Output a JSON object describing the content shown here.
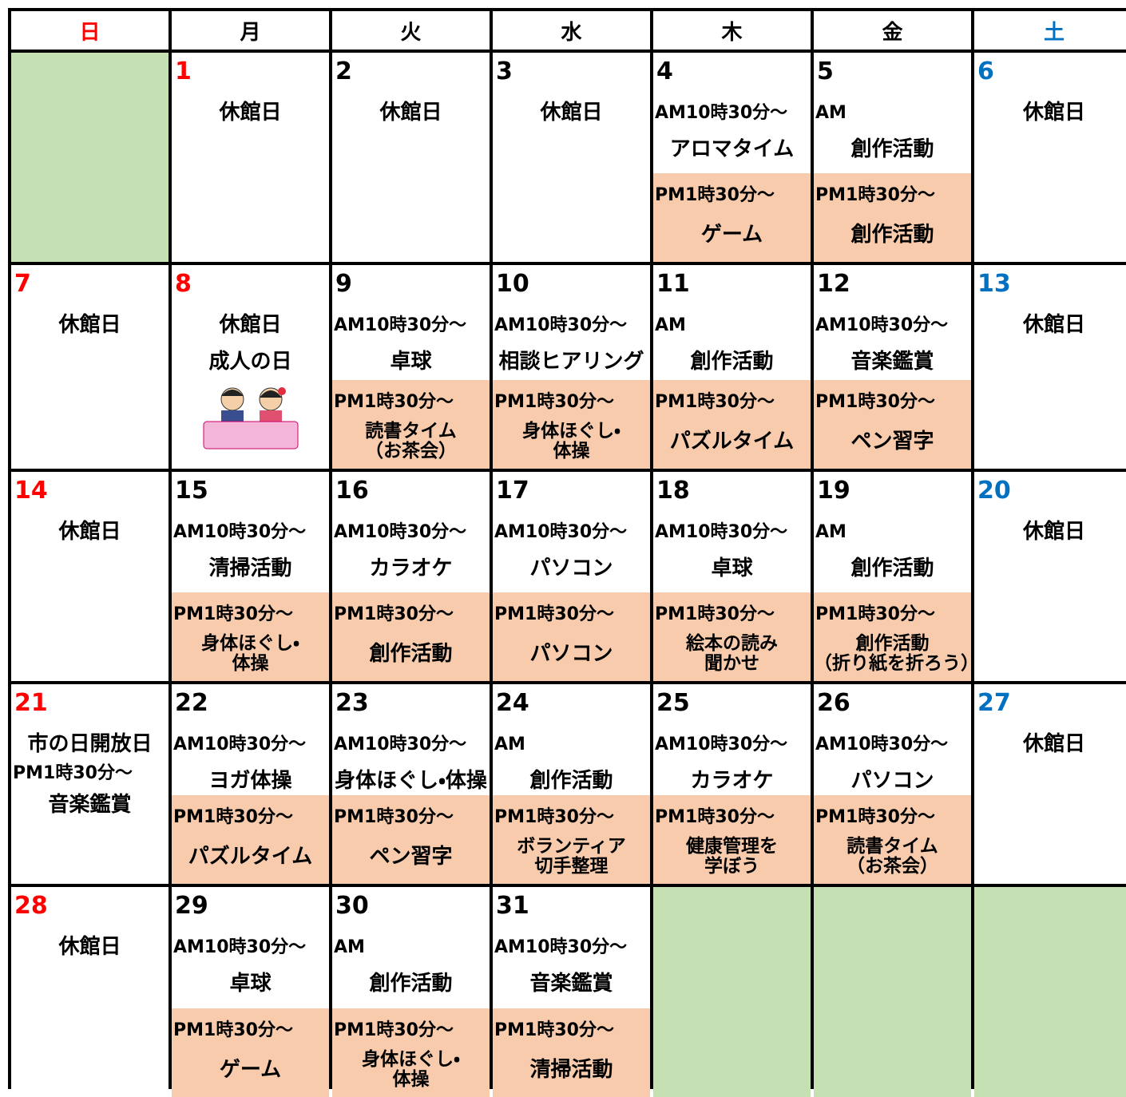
{
  "headers": [
    "日",
    "月",
    "火",
    "水",
    "木",
    "金",
    "土"
  ],
  "weeks": [
    [
      null,
      {
        "day": "1",
        "holiday": true,
        "notes": [
          "休館日"
        ]
      },
      {
        "day": "2",
        "notes": [
          "休館日"
        ]
      },
      {
        "day": "3",
        "notes": [
          "休館日"
        ]
      },
      {
        "day": "4",
        "am": {
          "time": "AM10時30分～",
          "activity": [
            "アロマタイム"
          ]
        },
        "pm": {
          "time": "PM1時30分～",
          "activity": [
            "ゲーム"
          ]
        }
      },
      {
        "day": "5",
        "am": {
          "time": "AM",
          "activity": [
            "創作活動"
          ]
        },
        "pm": {
          "time": "PM1時30分～",
          "activity": [
            "創作活動"
          ]
        }
      },
      {
        "day": "6",
        "notes": [
          "休館日"
        ]
      }
    ],
    [
      {
        "day": "7",
        "notes": [
          "休館日"
        ]
      },
      {
        "day": "8",
        "holiday": true,
        "notes": [
          "休館日",
          "成人の日"
        ],
        "illustration": true
      },
      {
        "day": "9",
        "am": {
          "time": "AM10時30分～",
          "activity": [
            "卓球"
          ]
        },
        "pm": {
          "time": "PM1時30分～",
          "activity": [
            "読書タイム",
            "（お茶会）"
          ]
        }
      },
      {
        "day": "10",
        "am": {
          "time": "AM10時30分～",
          "activity": [
            "相談ヒアリング"
          ]
        },
        "pm": {
          "time": "PM1時30分～",
          "activity": [
            "身体ほぐし・",
            "体操"
          ]
        }
      },
      {
        "day": "11",
        "am": {
          "time": "AM",
          "activity": [
            "創作活動"
          ]
        },
        "pm": {
          "time": "PM1時30分～",
          "activity": [
            "パズルタイム"
          ]
        }
      },
      {
        "day": "12",
        "am": {
          "time": "AM10時30分～",
          "activity": [
            "音楽鑑賞"
          ]
        },
        "pm": {
          "time": "PM1時30分～",
          "activity": [
            "ペン習字"
          ]
        }
      },
      {
        "day": "13",
        "notes": [
          "休館日"
        ]
      }
    ],
    [
      {
        "day": "14",
        "notes": [
          "休館日"
        ]
      },
      {
        "day": "15",
        "am": {
          "time": "AM10時30分～",
          "activity": [
            "清掃活動"
          ]
        },
        "pm": {
          "time": "PM1時30分～",
          "activity": [
            "身体ほぐし・",
            "体操"
          ]
        }
      },
      {
        "day": "16",
        "am": {
          "time": "AM10時30分～",
          "activity": [
            "カラオケ"
          ]
        },
        "pm": {
          "time": "PM1時30分～",
          "activity": [
            "創作活動"
          ]
        }
      },
      {
        "day": "17",
        "am": {
          "time": "AM10時30分～",
          "activity": [
            "パソコン"
          ]
        },
        "pm": {
          "time": "PM1時30分～",
          "activity": [
            "パソコン"
          ]
        }
      },
      {
        "day": "18",
        "am": {
          "time": "AM10時30分～",
          "activity": [
            "卓球"
          ]
        },
        "pm": {
          "time": "PM1時30分～",
          "activity": [
            "絵本の読み",
            "聞かせ"
          ]
        }
      },
      {
        "day": "19",
        "am": {
          "time": "AM",
          "activity": [
            "創作活動"
          ]
        },
        "pm": {
          "time": "PM1時30分～",
          "activity": [
            "創作活動",
            "（折り紙を折ろう）"
          ]
        }
      },
      {
        "day": "20",
        "notes": [
          "休館日"
        ]
      }
    ],
    [
      {
        "day": "21",
        "special": {
          "title": "市の日開放日",
          "time": "PM1時30分～",
          "activity": "音楽鑑賞"
        }
      },
      {
        "day": "22",
        "am": {
          "time": "AM10時30分～",
          "activity": [
            "ヨガ体操"
          ]
        },
        "pm": {
          "time": "PM1時30分～",
          "activity": [
            "パズルタイム"
          ]
        }
      },
      {
        "day": "23",
        "am": {
          "time": "AM10時30分～",
          "activity": [
            "身体ほぐし・体操"
          ]
        },
        "pm": {
          "time": "PM1時30分～",
          "activity": [
            "ペン習字"
          ]
        }
      },
      {
        "day": "24",
        "am": {
          "time": "AM",
          "activity": [
            "創作活動"
          ]
        },
        "pm": {
          "time": "PM1時30分～",
          "activity": [
            "ボランティア",
            "切手整理"
          ]
        }
      },
      {
        "day": "25",
        "am": {
          "time": "AM10時30分～",
          "activity": [
            "カラオケ"
          ]
        },
        "pm": {
          "time": "PM1時30分～",
          "activity": [
            "健康管理を",
            "学ぼう"
          ]
        }
      },
      {
        "day": "26",
        "am": {
          "time": "AM10時30分～",
          "activity": [
            "パソコン"
          ]
        },
        "pm": {
          "time": "PM1時30分～",
          "activity": [
            "読書タイム",
            "（お茶会）"
          ]
        }
      },
      {
        "day": "27",
        "notes": [
          "休館日"
        ]
      }
    ],
    [
      {
        "day": "28",
        "notes": [
          "休館日"
        ]
      },
      {
        "day": "29",
        "am": {
          "time": "AM10時30分～",
          "activity": [
            "卓球"
          ]
        },
        "pm": {
          "time": "PM1時30分～",
          "activity": [
            "ゲーム"
          ]
        }
      },
      {
        "day": "30",
        "am": {
          "time": "AM",
          "activity": [
            "創作活動"
          ]
        },
        "pm": {
          "time": "PM1時30分～",
          "activity": [
            "身体ほぐし・",
            "体操"
          ]
        }
      },
      {
        "day": "31",
        "am": {
          "time": "AM10時30分～",
          "activity": [
            "音楽鑑賞"
          ]
        },
        "pm": {
          "time": "PM1時30分～",
          "activity": [
            "清掃活動"
          ]
        }
      },
      null,
      null,
      null
    ]
  ]
}
